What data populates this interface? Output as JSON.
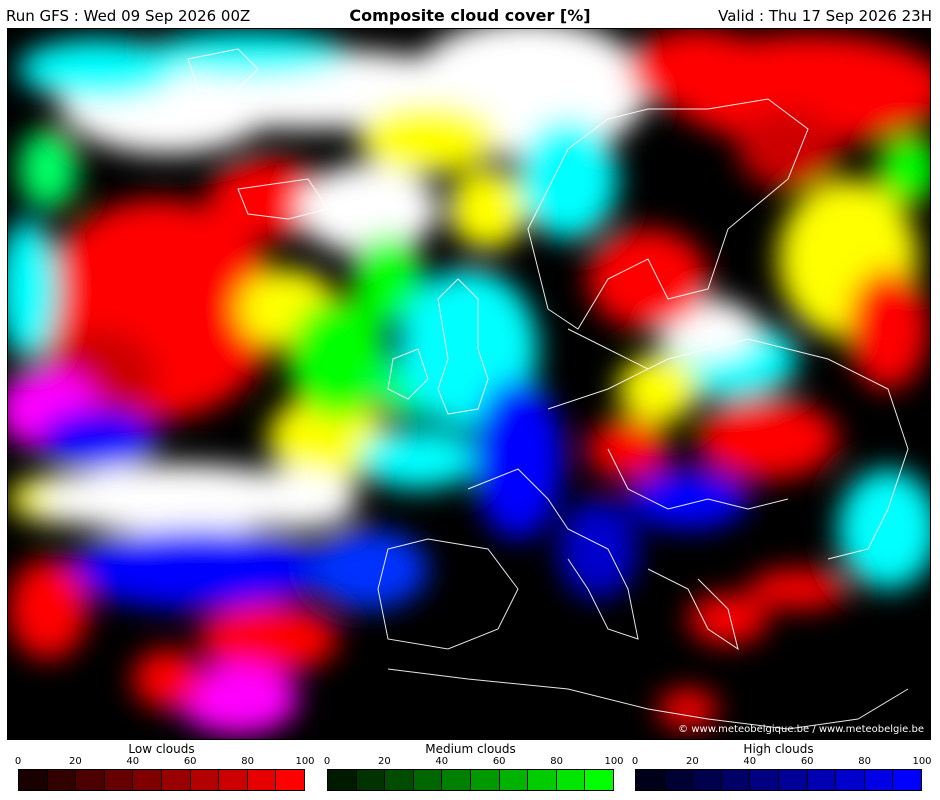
{
  "header": {
    "run": "Run GFS : Wed 09 Sep 2026 00Z",
    "title": "Composite cloud cover [%]",
    "valid": "Valid : Thu 17 Sep 2026 23H"
  },
  "map": {
    "credit": "© www.meteobelgique.be / www.meteobelgie.be"
  },
  "legends": [
    {
      "title": "Low clouds",
      "ticks": [
        "0",
        "20",
        "40",
        "60",
        "80",
        "100"
      ],
      "colors": [
        "#1a0000",
        "#330000",
        "#4d0000",
        "#660000",
        "#800000",
        "#990000",
        "#b30000",
        "#cc0000",
        "#e60000",
        "#ff0000"
      ]
    },
    {
      "title": "Medium clouds",
      "ticks": [
        "0",
        "20",
        "40",
        "60",
        "80",
        "100"
      ],
      "colors": [
        "#001a00",
        "#003300",
        "#004d00",
        "#006600",
        "#008000",
        "#009900",
        "#00b300",
        "#00cc00",
        "#00e600",
        "#00ff00"
      ]
    },
    {
      "title": "High clouds",
      "ticks": [
        "0",
        "20",
        "40",
        "60",
        "80",
        "100"
      ],
      "colors": [
        "#00001a",
        "#000033",
        "#00004d",
        "#000066",
        "#000080",
        "#000099",
        "#0000b3",
        "#0000cc",
        "#0000e6",
        "#0000ff"
      ]
    }
  ]
}
